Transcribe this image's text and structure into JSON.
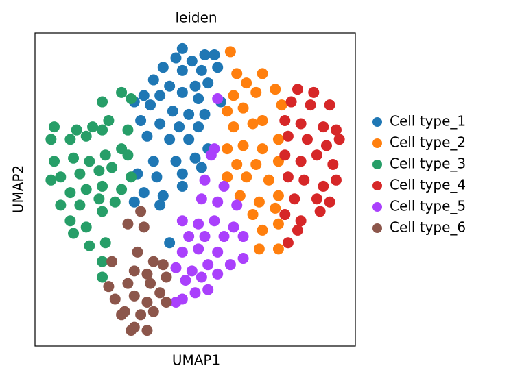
{
  "chart_data": {
    "type": "scatter",
    "title": "leiden",
    "xlabel": "UMAP1",
    "ylabel": "UMAP2",
    "xlim": [
      0,
      100
    ],
    "ylim": [
      0,
      100
    ],
    "series": [
      {
        "name": "Cell type_1",
        "color": "#1f77b4",
        "x": [
          46,
          44,
          49,
          53,
          56,
          40,
          46,
          52,
          57,
          37,
          42,
          50,
          54,
          34,
          39,
          46,
          51,
          58,
          31,
          36,
          43,
          48,
          53,
          33,
          39,
          45,
          51,
          35,
          42,
          48,
          54,
          37,
          44,
          50,
          32,
          38,
          46,
          52,
          34,
          40,
          46,
          39,
          31,
          42
        ],
        "y": [
          95,
          92,
          91,
          93,
          93,
          89,
          88,
          88,
          89,
          85,
          83,
          83,
          84,
          80,
          80,
          81,
          79,
          78,
          78,
          77,
          75,
          74,
          74,
          72,
          71,
          70,
          70,
          67,
          66,
          66,
          63,
          59,
          59,
          60,
          55,
          54,
          55,
          57,
          49,
          48,
          51,
          45,
          46,
          33
        ]
      },
      {
        "name": "Cell type_2",
        "color": "#ff7f0e",
        "x": [
          61,
          63,
          71,
          66,
          75,
          62,
          69,
          77,
          60,
          65,
          71,
          62,
          68,
          76,
          60,
          65,
          71,
          63,
          69,
          76,
          60,
          66,
          73,
          64,
          70,
          76,
          68,
          75,
          71,
          76,
          70,
          76
        ],
        "y": [
          94,
          87,
          87,
          84,
          82,
          80,
          81,
          77,
          75,
          76,
          72,
          70,
          71,
          66,
          63,
          64,
          63,
          58,
          58,
          59,
          54,
          54,
          53,
          48,
          46,
          48,
          42,
          44,
          37,
          39,
          31,
          31
        ]
      },
      {
        "name": "Cell type_3",
        "color": "#279e68",
        "x": [
          27,
          21,
          30,
          6,
          13,
          18,
          23,
          29,
          5,
          11,
          16,
          21,
          27,
          6,
          12,
          17,
          22,
          29,
          8,
          14,
          20,
          24,
          30,
          5,
          11,
          16,
          21,
          27,
          8,
          14,
          20,
          25,
          11,
          16,
          21,
          12,
          22,
          17,
          21,
          21
        ],
        "y": [
          81,
          78,
          79,
          70,
          69,
          70,
          72,
          69,
          66,
          66,
          67,
          69,
          63,
          59,
          60,
          59,
          61,
          61,
          54,
          55,
          56,
          57,
          54,
          53,
          49,
          50,
          51,
          50,
          45,
          45,
          47,
          46,
          40,
          38,
          43,
          36,
          33,
          32,
          27,
          22
        ]
      },
      {
        "name": "Cell type_4",
        "color": "#d62728",
        "x": [
          82,
          87,
          80,
          86,
          92,
          78,
          83,
          90,
          94,
          79,
          85,
          91,
          95,
          78,
          83,
          88,
          93,
          79,
          84,
          90,
          94,
          81,
          88,
          92,
          78,
          83,
          89,
          82,
          79
        ],
        "y": [
          82,
          81,
          78,
          77,
          77,
          72,
          71,
          70,
          69,
          67,
          66,
          64,
          66,
          61,
          59,
          61,
          58,
          54,
          53,
          51,
          53,
          47,
          47,
          46,
          42,
          40,
          43,
          37,
          33
        ]
      },
      {
        "name": "Cell type_5",
        "color": "#aa40fc",
        "x": [
          57,
          56,
          55,
          53,
          59,
          52,
          57,
          63,
          46,
          51,
          56,
          62,
          48,
          53,
          59,
          65,
          46,
          51,
          57,
          44,
          49,
          54,
          61,
          65,
          47,
          52,
          57,
          46,
          50,
          54,
          44
        ],
        "y": [
          79,
          63,
          61,
          53,
          51,
          47,
          46,
          45,
          40,
          39,
          40,
          38,
          35,
          35,
          35,
          35,
          30,
          31,
          30,
          25,
          24,
          26,
          26,
          28,
          21,
          22,
          23,
          15,
          17,
          18,
          14
        ]
      },
      {
        "name": "Cell type_6",
        "color": "#8c564b",
        "x": [
          33,
          29,
          34,
          32,
          24,
          37,
          40,
          31,
          35,
          41,
          23,
          29,
          36,
          39,
          25,
          31,
          35,
          41,
          28,
          33,
          37,
          27,
          31,
          35,
          30
        ],
        "y": [
          43,
          39,
          38,
          30,
          27,
          27,
          26,
          24,
          23,
          22,
          19,
          20,
          20,
          17,
          15,
          16,
          14,
          14,
          11,
          10,
          11,
          10,
          6,
          5,
          5
        ]
      }
    ]
  }
}
